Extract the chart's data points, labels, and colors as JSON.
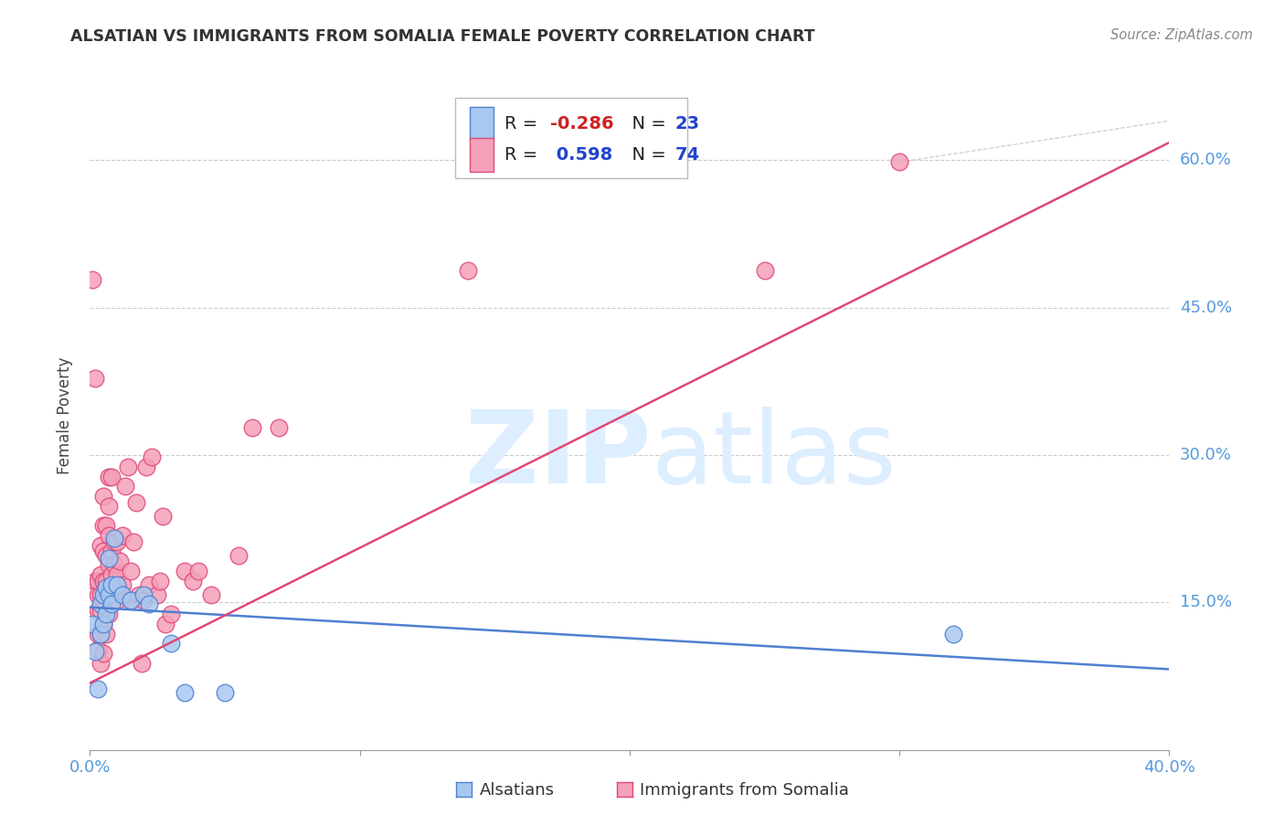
{
  "title": "ALSATIAN VS IMMIGRANTS FROM SOMALIA FEMALE POVERTY CORRELATION CHART",
  "source": "Source: ZipAtlas.com",
  "ylabel": "Female Poverty",
  "ytick_labels": [
    "15.0%",
    "30.0%",
    "45.0%",
    "60.0%"
  ],
  "ytick_values": [
    0.15,
    0.3,
    0.45,
    0.6
  ],
  "xmin": 0.0,
  "xmax": 0.4,
  "ymin": 0.0,
  "ymax": 0.68,
  "color_blue": "#a8c8f0",
  "color_pink": "#f4a0b8",
  "line_color_blue": "#5080d0",
  "line_color_pink": "#e04878",
  "background_color": "#ffffff",
  "blue_line_x": [
    0.0,
    0.4
  ],
  "blue_line_y": [
    0.145,
    0.082
  ],
  "pink_line_x": [
    0.0,
    0.4
  ],
  "pink_line_y": [
    0.068,
    0.618
  ],
  "alsatian_points": [
    [
      0.001,
      0.128
    ],
    [
      0.002,
      0.1
    ],
    [
      0.003,
      0.062
    ],
    [
      0.004,
      0.148
    ],
    [
      0.004,
      0.118
    ],
    [
      0.005,
      0.158
    ],
    [
      0.005,
      0.128
    ],
    [
      0.006,
      0.165
    ],
    [
      0.006,
      0.138
    ],
    [
      0.007,
      0.195
    ],
    [
      0.007,
      0.158
    ],
    [
      0.008,
      0.168
    ],
    [
      0.008,
      0.148
    ],
    [
      0.009,
      0.215
    ],
    [
      0.01,
      0.168
    ],
    [
      0.012,
      0.158
    ],
    [
      0.015,
      0.152
    ],
    [
      0.02,
      0.158
    ],
    [
      0.022,
      0.148
    ],
    [
      0.03,
      0.108
    ],
    [
      0.035,
      0.058
    ],
    [
      0.05,
      0.058
    ],
    [
      0.32,
      0.118
    ]
  ],
  "somalia_points": [
    [
      0.001,
      0.478
    ],
    [
      0.002,
      0.378
    ],
    [
      0.002,
      0.172
    ],
    [
      0.003,
      0.102
    ],
    [
      0.003,
      0.118
    ],
    [
      0.003,
      0.142
    ],
    [
      0.003,
      0.158
    ],
    [
      0.003,
      0.172
    ],
    [
      0.004,
      0.088
    ],
    [
      0.004,
      0.118
    ],
    [
      0.004,
      0.142
    ],
    [
      0.004,
      0.158
    ],
    [
      0.004,
      0.178
    ],
    [
      0.004,
      0.208
    ],
    [
      0.005,
      0.098
    ],
    [
      0.005,
      0.128
    ],
    [
      0.005,
      0.152
    ],
    [
      0.005,
      0.172
    ],
    [
      0.005,
      0.202
    ],
    [
      0.005,
      0.228
    ],
    [
      0.005,
      0.258
    ],
    [
      0.006,
      0.118
    ],
    [
      0.006,
      0.148
    ],
    [
      0.006,
      0.172
    ],
    [
      0.006,
      0.198
    ],
    [
      0.006,
      0.228
    ],
    [
      0.007,
      0.138
    ],
    [
      0.007,
      0.162
    ],
    [
      0.007,
      0.188
    ],
    [
      0.007,
      0.218
    ],
    [
      0.007,
      0.248
    ],
    [
      0.007,
      0.278
    ],
    [
      0.008,
      0.152
    ],
    [
      0.008,
      0.178
    ],
    [
      0.008,
      0.202
    ],
    [
      0.008,
      0.278
    ],
    [
      0.009,
      0.158
    ],
    [
      0.009,
      0.188
    ],
    [
      0.009,
      0.212
    ],
    [
      0.01,
      0.152
    ],
    [
      0.01,
      0.178
    ],
    [
      0.01,
      0.212
    ],
    [
      0.011,
      0.162
    ],
    [
      0.011,
      0.192
    ],
    [
      0.012,
      0.168
    ],
    [
      0.012,
      0.218
    ],
    [
      0.013,
      0.268
    ],
    [
      0.014,
      0.288
    ],
    [
      0.015,
      0.152
    ],
    [
      0.015,
      0.182
    ],
    [
      0.016,
      0.212
    ],
    [
      0.017,
      0.252
    ],
    [
      0.018,
      0.158
    ],
    [
      0.019,
      0.088
    ],
    [
      0.02,
      0.152
    ],
    [
      0.021,
      0.288
    ],
    [
      0.022,
      0.168
    ],
    [
      0.023,
      0.298
    ],
    [
      0.025,
      0.158
    ],
    [
      0.026,
      0.172
    ],
    [
      0.027,
      0.238
    ],
    [
      0.028,
      0.128
    ],
    [
      0.03,
      0.138
    ],
    [
      0.035,
      0.182
    ],
    [
      0.038,
      0.172
    ],
    [
      0.04,
      0.182
    ],
    [
      0.045,
      0.158
    ],
    [
      0.055,
      0.198
    ],
    [
      0.06,
      0.328
    ],
    [
      0.07,
      0.328
    ],
    [
      0.14,
      0.488
    ],
    [
      0.25,
      0.488
    ],
    [
      0.3,
      0.598
    ]
  ]
}
